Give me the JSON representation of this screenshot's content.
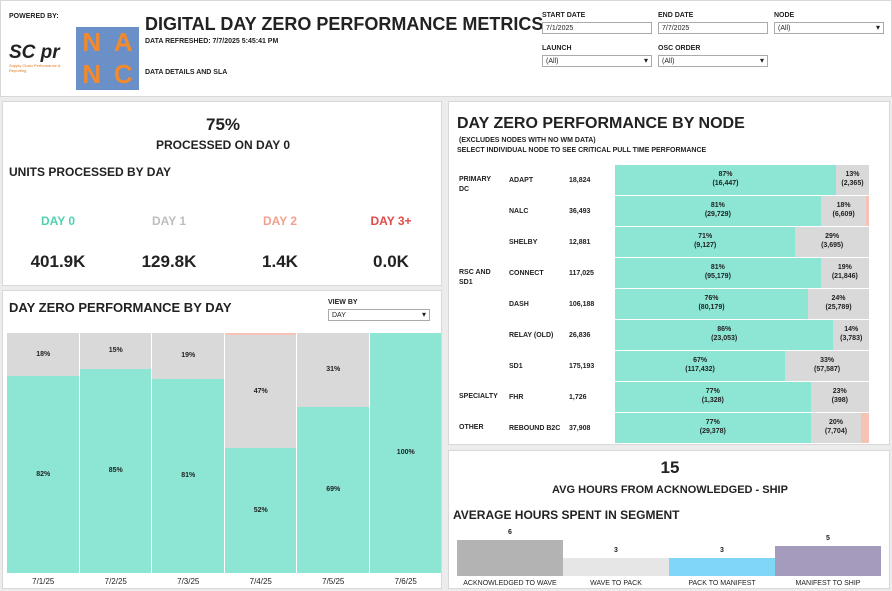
{
  "header": {
    "powered_by": "POWERED BY:",
    "logo_text": "SC pr",
    "logo_sub": "Supply Chain Performance & Reporting",
    "nanc_letters": [
      "N",
      "A",
      "N",
      "C"
    ],
    "title": "DIGITAL DAY ZERO PERFORMANCE METRICS",
    "refreshed": "DATA REFRESHED: 7/7/2025 5:45:41 PM",
    "details": "DATA DETAILS AND SLA"
  },
  "filters": {
    "start_label": "START DATE",
    "start_value": "7/1/2025",
    "end_label": "END DATE",
    "end_value": "7/7/2025",
    "node_label": "NODE",
    "node_value": "(All)",
    "launch_label": "LAUNCH",
    "launch_value": "(All)",
    "osc_label": "OSC ORDER",
    "osc_value": "(All)"
  },
  "summary": {
    "pct": "75%",
    "pct_label": "PROCESSED ON DAY 0",
    "units_title": "UNITS PROCESSED BY DAY",
    "days": [
      {
        "label": "DAY 0",
        "value": "401.9K",
        "color": "#4fd1b0"
      },
      {
        "label": "DAY 1",
        "value": "129.8K",
        "color": "#bdbdbd"
      },
      {
        "label": "DAY 2",
        "value": "1.4K",
        "color": "#f2a18f"
      },
      {
        "label": "DAY 3+",
        "value": "0.0K",
        "color": "#e24a4a"
      }
    ]
  },
  "by_day": {
    "title": "DAY ZERO PERFORMANCE BY DAY",
    "view_by_label": "VIEW BY",
    "view_by_value": "DAY",
    "chart_data": {
      "type": "bar",
      "categories": [
        "7/1/25",
        "7/2/25",
        "7/3/25",
        "7/4/25",
        "7/5/25",
        "7/6/25"
      ],
      "series": [
        {
          "values": [
            82,
            85,
            81,
            52,
            69,
            100
          ],
          "color": "#8de6d4"
        },
        {
          "values": [
            18,
            15,
            19,
            47,
            31,
            0
          ],
          "color": "#d9d9d9"
        },
        {
          "values": [
            0,
            0,
            0,
            1,
            0,
            0
          ],
          "color": "#f7c2b6"
        }
      ],
      "labels_day0": [
        "82%",
        "85%",
        "81%",
        "52%",
        "69%",
        "100%"
      ],
      "labels_day1": [
        "18%",
        "15%",
        "19%",
        "47%",
        "31%",
        ""
      ]
    }
  },
  "by_node": {
    "title": "DAY ZERO PERFORMANCE BY NODE",
    "note1": "(EXCLUDES NODES WITH NO WM DATA)",
    "note2": "SELECT INDIVIDUAL NODE TO SEE CRITICAL PULL TIME PERFORMANCE",
    "chart_data": {
      "type": "bar",
      "rows": [
        {
          "group": "PRIMARY DC",
          "node": "ADAPT",
          "total": "18,824",
          "d0": 87,
          "d0_label": "87%",
          "d0_count": "(16,447)",
          "d1": 13,
          "d1_label": "13%",
          "d1_count": "(2,365)"
        },
        {
          "group": "",
          "node": "NALC",
          "total": "36,493",
          "d0": 81,
          "d0_label": "81%",
          "d0_count": "(29,729)",
          "d1": 18,
          "d1_label": "18%",
          "d1_count": "(6,609)"
        },
        {
          "group": "",
          "node": "SHELBY",
          "total": "12,881",
          "d0": 71,
          "d0_label": "71%",
          "d0_count": "(9,127)",
          "d1": 29,
          "d1_label": "29%",
          "d1_count": "(3,695)"
        },
        {
          "group": "RSC AND SD1",
          "node": "CONNECT",
          "total": "117,025",
          "d0": 81,
          "d0_label": "81%",
          "d0_count": "(95,179)",
          "d1": 19,
          "d1_label": "19%",
          "d1_count": "(21,846)"
        },
        {
          "group": "",
          "node": "DASH",
          "total": "106,188",
          "d0": 76,
          "d0_label": "76%",
          "d0_count": "(80,179)",
          "d1": 24,
          "d1_label": "24%",
          "d1_count": "(25,789)"
        },
        {
          "group": "",
          "node": "RELAY (OLD)",
          "total": "26,836",
          "d0": 86,
          "d0_label": "86%",
          "d0_count": "(23,053)",
          "d1": 14,
          "d1_label": "14%",
          "d1_count": "(3,783)"
        },
        {
          "group": "",
          "node": "SD1",
          "total": "175,193",
          "d0": 67,
          "d0_label": "67%",
          "d0_count": "(117,432)",
          "d1": 33,
          "d1_label": "33%",
          "d1_count": "(57,587)"
        },
        {
          "group": "SPECIALTY",
          "node": "FHR",
          "total": "1,726",
          "d0": 77,
          "d0_label": "77%",
          "d0_count": "(1,328)",
          "d1": 23,
          "d1_label": "23%",
          "d1_count": "(398)"
        },
        {
          "group": "OTHER",
          "node": "REBOUND B2C",
          "total": "37,908",
          "d0": 77,
          "d0_label": "77%",
          "d0_count": "(29,378)",
          "d1": 20,
          "d1_label": "20%",
          "d1_count": "(7,704)"
        }
      ]
    }
  },
  "hours": {
    "value": "15",
    "label": "AVG HOURS FROM ACKNOWLEDGED - SHIP",
    "seg_title": "AVERAGE HOURS SPENT IN SEGMENT",
    "chart_data": {
      "type": "bar",
      "categories": [
        "ACKNOWLEDGED TO WAVE",
        "WAVE TO PACK",
        "PACK TO MANIFEST",
        "MANIFEST TO SHIP"
      ],
      "values": [
        6,
        3,
        3,
        5
      ],
      "colors": [
        "#b3b3b3",
        "#e6e6e6",
        "#7fd6f7",
        "#a59bbd"
      ]
    }
  }
}
